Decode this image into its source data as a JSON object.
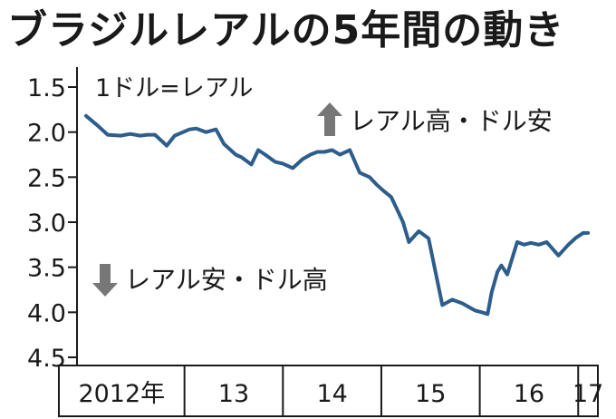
{
  "chart_data": {
    "type": "line",
    "title": "ブラジルレアルの5年間の動き",
    "subtitle": "1ドル=レアル",
    "y_tick_labels": [
      "1.5",
      "2.0",
      "2.5",
      "3.0",
      "3.5",
      "4.0",
      "4.5"
    ],
    "ylim": [
      1.5,
      4.5
    ],
    "y_inverted": true,
    "x_tick_labels": [
      "2012年",
      "13",
      "14",
      "15",
      "16",
      "17"
    ],
    "x_range": [
      2012.0,
      2017.2
    ],
    "annotations": {
      "up": "レアル高・ドル安",
      "down": "レアル安・ドル高"
    },
    "series": [
      {
        "color": "#2d5d8c",
        "x": [
          2012.0,
          2012.12,
          2012.22,
          2012.35,
          2012.45,
          2012.55,
          2012.62,
          2012.7,
          2012.82,
          2012.9,
          2013.05,
          2013.12,
          2013.22,
          2013.32,
          2013.4,
          2013.47,
          2013.52,
          2013.58,
          2013.68,
          2013.75,
          2013.82,
          2013.92,
          2014.0,
          2014.1,
          2014.2,
          2014.28,
          2014.35,
          2014.42,
          2014.5,
          2014.58,
          2014.68,
          2014.78,
          2014.88,
          2014.95,
          2015.02,
          2015.1,
          2015.17,
          2015.22,
          2015.28,
          2015.38,
          2015.48,
          2015.55,
          2015.62,
          2015.72,
          2015.82,
          2015.95,
          2016.02,
          2016.08,
          2016.12,
          2016.18,
          2016.22,
          2016.28,
          2016.38,
          2016.45,
          2016.52,
          2016.6,
          2016.68,
          2016.8,
          2016.9,
          2016.98,
          2017.05,
          2017.1
        ],
        "y": [
          1.82,
          1.93,
          2.03,
          2.04,
          2.02,
          2.04,
          2.03,
          2.03,
          2.15,
          2.04,
          1.97,
          1.96,
          2.0,
          1.97,
          2.13,
          2.2,
          2.25,
          2.28,
          2.36,
          2.2,
          2.25,
          2.33,
          2.35,
          2.4,
          2.3,
          2.25,
          2.22,
          2.22,
          2.2,
          2.25,
          2.2,
          2.45,
          2.5,
          2.58,
          2.65,
          2.72,
          2.88,
          3.0,
          3.22,
          3.1,
          3.18,
          3.55,
          3.92,
          3.86,
          3.9,
          3.98,
          4.0,
          4.02,
          3.78,
          3.55,
          3.48,
          3.58,
          3.22,
          3.25,
          3.23,
          3.25,
          3.22,
          3.37,
          3.25,
          3.17,
          3.12,
          3.12
        ]
      }
    ]
  }
}
